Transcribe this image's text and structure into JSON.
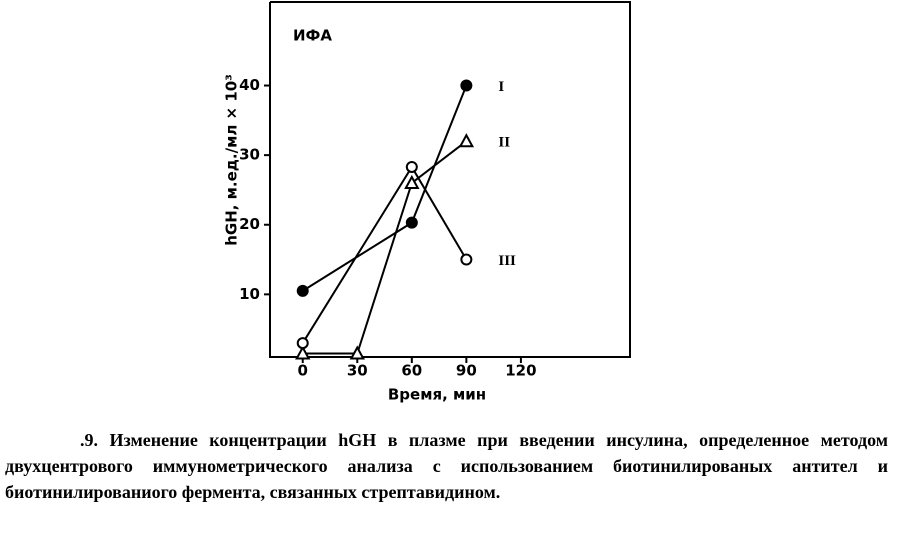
{
  "chart_data": {
    "type": "line",
    "panel_label": "ИФА",
    "ylabel": "hGH, м.ед./мл × 10³",
    "xlabel": "Время, мин",
    "xlim": [
      -18,
      180
    ],
    "ylim": [
      1,
      52
    ],
    "xticks": [
      0,
      30,
      60,
      90,
      120
    ],
    "yticks": [
      10,
      20,
      30,
      40
    ],
    "series": [
      {
        "name": "I",
        "color": "#000000",
        "marker": "filled-circle",
        "x": [
          0,
          60,
          90
        ],
        "values": [
          10.5,
          20.3,
          40
        ]
      },
      {
        "name": "II",
        "color": "#000000",
        "marker": "triangle",
        "x": [
          0,
          30,
          60,
          90
        ],
        "values": [
          1.5,
          1.5,
          26,
          32
        ]
      },
      {
        "name": "III",
        "color": "#000000",
        "marker": "open-circle",
        "x": [
          0,
          60,
          90
        ],
        "values": [
          3,
          28.3,
          15
        ]
      }
    ],
    "caption": ".9. Изменение концентрации hGH в плазме при введении инсулина, определенное методом двухцентрового иммунометрического анализа с использованием биотинилированых антител и биотинилированиого фермента, связанных стрептавидином."
  }
}
